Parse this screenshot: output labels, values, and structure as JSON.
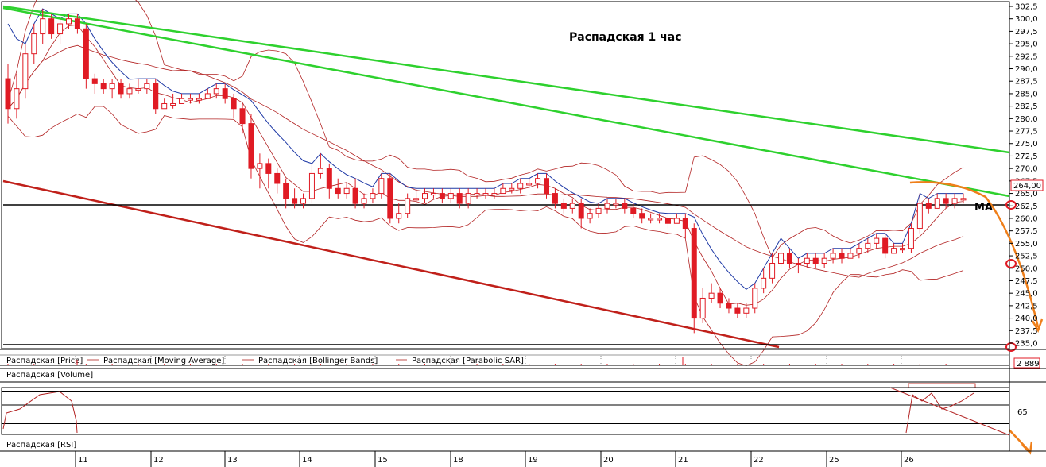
{
  "chart_data": {
    "type": "candlestick",
    "title": "Распадская   1 час",
    "price_axis": {
      "ticks": [
        "302,5",
        "300,0",
        "297,5",
        "295,0",
        "292,5",
        "290,0",
        "287,5",
        "285,0",
        "282,5",
        "280,0",
        "277,5",
        "275,0",
        "272,5",
        "270,0",
        "267,5",
        "265,0",
        "262,5",
        "260,0",
        "257,5",
        "255,0",
        "252,5",
        "250,0",
        "247,5",
        "245,0",
        "242,5",
        "240,0",
        "237,5",
        "235,0"
      ],
      "range": [
        234,
        303.5
      ],
      "last_price": "264,00"
    },
    "x_axis": {
      "dates": [
        "11",
        "12",
        "13",
        "14",
        "15",
        "18",
        "19",
        "20",
        "21",
        "22",
        "25",
        "26"
      ]
    },
    "legend": [
      {
        "name": "Распадская [Price]",
        "color": "#c0504d"
      },
      {
        "name": "Распадская [Moving Average]",
        "color": "#c0504d"
      },
      {
        "name": "Распадская [Bollinger Bands]",
        "color": "#c0504d"
      },
      {
        "name": "Распадская [Parabolic SAR]",
        "color": "#1f3aa6"
      }
    ],
    "ma_label": "MA",
    "volume": {
      "label": "Распадская [Volume]",
      "last": "2 889"
    },
    "rsi": {
      "label": "Распадская [RSI]",
      "tick": "65"
    },
    "colors": {
      "candle": "#e01b24",
      "ma": "#b22222",
      "sar": "#1f3aa6",
      "trend_green": "#2ed12e",
      "trend_red": "#c0201a",
      "forecast": "#ef7f1a"
    },
    "candles": [
      [
        288,
        282,
        291,
        279
      ],
      [
        282,
        286,
        289,
        280
      ],
      [
        286,
        293,
        295,
        284
      ],
      [
        293,
        297,
        299,
        291
      ],
      [
        297,
        300,
        302,
        295
      ],
      [
        300,
        297,
        301,
        296
      ],
      [
        297,
        299,
        300,
        295
      ],
      [
        299,
        300,
        301,
        298
      ],
      [
        300,
        298,
        301,
        297
      ],
      [
        298,
        288,
        299,
        286
      ],
      [
        288,
        287,
        289,
        285
      ],
      [
        287,
        286,
        288,
        285
      ],
      [
        286,
        287,
        288,
        284
      ],
      [
        287,
        285,
        288,
        284
      ],
      [
        285,
        286,
        287,
        284
      ],
      [
        286,
        286,
        288,
        285
      ],
      [
        286,
        287,
        288,
        285
      ],
      [
        287,
        282,
        288,
        281
      ],
      [
        282,
        283,
        284,
        282
      ],
      [
        283,
        283,
        285,
        282
      ],
      [
        283,
        284,
        285,
        283
      ],
      [
        284,
        284,
        285,
        283
      ],
      [
        284,
        284,
        285,
        283
      ],
      [
        284,
        285,
        286,
        284
      ],
      [
        285,
        286,
        287,
        284
      ],
      [
        286,
        284,
        287,
        283
      ],
      [
        284,
        282,
        285,
        280
      ],
      [
        282,
        279,
        283,
        277
      ],
      [
        279,
        270,
        281,
        268
      ],
      [
        270,
        271,
        273,
        266
      ],
      [
        271,
        269,
        272,
        266
      ],
      [
        269,
        267,
        270,
        265
      ],
      [
        267,
        264,
        268,
        262
      ],
      [
        264,
        263,
        266,
        262
      ],
      [
        263,
        264,
        265,
        262
      ],
      [
        264,
        269,
        271,
        263
      ],
      [
        269,
        270,
        273,
        268
      ],
      [
        270,
        266,
        271,
        264
      ],
      [
        266,
        265,
        268,
        264
      ],
      [
        265,
        266,
        267,
        264
      ],
      [
        266,
        263,
        268,
        262
      ],
      [
        263,
        264,
        265,
        262
      ],
      [
        264,
        265,
        266,
        263
      ],
      [
        265,
        268,
        269,
        264
      ],
      [
        268,
        260,
        269,
        259
      ],
      [
        260,
        261,
        263,
        259
      ],
      [
        261,
        264,
        265,
        260
      ],
      [
        264,
        264,
        266,
        263
      ],
      [
        264,
        265,
        266,
        263
      ],
      [
        265,
        265,
        266,
        264
      ],
      [
        265,
        264,
        266,
        263
      ],
      [
        264,
        265,
        266,
        263
      ],
      [
        265,
        263,
        266,
        262
      ],
      [
        263,
        265,
        266,
        262
      ],
      [
        265,
        265,
        266,
        264
      ],
      [
        265,
        265,
        266,
        264
      ],
      [
        265,
        265,
        266,
        264
      ],
      [
        265,
        266,
        267,
        265
      ],
      [
        266,
        266,
        267,
        265
      ],
      [
        266,
        267,
        268,
        265
      ],
      [
        267,
        267,
        268,
        266
      ],
      [
        267,
        268,
        269,
        266
      ],
      [
        268,
        265,
        269,
        264
      ],
      [
        265,
        263,
        266,
        262
      ],
      [
        263,
        262,
        264,
        261
      ],
      [
        262,
        263,
        264,
        261
      ],
      [
        263,
        260,
        264,
        258
      ],
      [
        260,
        261,
        262,
        259
      ],
      [
        261,
        262,
        263,
        260
      ],
      [
        262,
        263,
        264,
        261
      ],
      [
        263,
        263,
        264,
        262
      ],
      [
        263,
        262,
        264,
        261
      ],
      [
        262,
        261,
        263,
        260
      ],
      [
        261,
        260,
        262,
        259
      ],
      [
        260,
        260,
        261,
        259
      ],
      [
        260,
        260,
        261,
        259
      ],
      [
        260,
        259,
        261,
        258
      ],
      [
        259,
        260,
        261,
        259
      ],
      [
        260,
        258,
        261,
        256
      ],
      [
        258,
        240,
        259,
        237
      ],
      [
        240,
        244,
        246,
        239
      ],
      [
        244,
        245,
        247,
        243
      ],
      [
        245,
        243,
        246,
        242
      ],
      [
        243,
        242,
        244,
        241
      ],
      [
        242,
        241,
        243,
        240
      ],
      [
        241,
        242,
        243,
        240
      ],
      [
        242,
        246,
        247,
        241
      ],
      [
        246,
        248,
        250,
        245
      ],
      [
        248,
        251,
        253,
        247
      ],
      [
        251,
        253,
        256,
        250
      ],
      [
        253,
        251,
        254,
        250
      ],
      [
        251,
        251,
        252,
        249
      ],
      [
        251,
        252,
        253,
        250
      ],
      [
        252,
        251,
        253,
        250
      ],
      [
        251,
        252,
        253,
        250
      ],
      [
        252,
        253,
        254,
        251
      ],
      [
        253,
        252,
        254,
        251
      ],
      [
        252,
        253,
        254,
        252
      ],
      [
        253,
        254,
        255,
        252
      ],
      [
        254,
        255,
        256,
        253
      ],
      [
        255,
        256,
        257,
        254
      ],
      [
        256,
        253,
        257,
        252
      ],
      [
        253,
        254,
        255,
        253
      ],
      [
        254,
        254,
        255,
        253
      ],
      [
        254,
        258,
        259,
        253
      ],
      [
        258,
        263,
        265,
        257
      ],
      [
        263,
        262,
        264,
        261
      ],
      [
        262,
        264,
        265,
        262
      ],
      [
        264,
        263,
        265,
        262
      ],
      [
        263,
        264,
        265,
        262
      ],
      [
        264,
        264,
        265,
        263
      ]
    ]
  }
}
